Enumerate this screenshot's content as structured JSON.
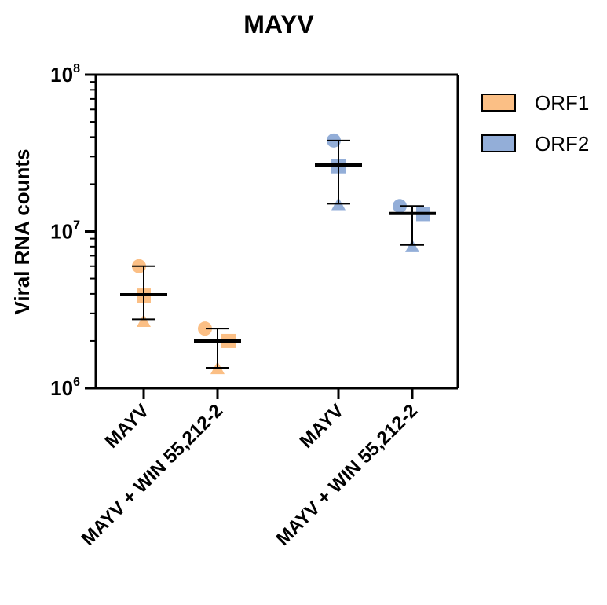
{
  "chart_data": {
    "type": "scatter",
    "title": "MAYV",
    "ylabel": "Viral RNA counts",
    "yscale": "log",
    "ylim": [
      1000000,
      100000000
    ],
    "yticks": [
      {
        "value": 1000000,
        "base": "10",
        "exp": "6"
      },
      {
        "value": 10000000,
        "base": "10",
        "exp": "7"
      },
      {
        "value": 100000000,
        "base": "10",
        "exp": "8"
      }
    ],
    "categories": [
      "MAYV",
      "MAYV + WIN 55,212-2",
      "MAYV",
      "MAYV + WIN 55,212-2"
    ],
    "legend_position": "right",
    "series": [
      {
        "name": "ORF1",
        "color": "#FBBF85",
        "groups": [
          {
            "category_index": 0,
            "points": [
              {
                "marker": "circle",
                "y": 6000000
              },
              {
                "marker": "square",
                "y": 3900000
              },
              {
                "marker": "triangle",
                "y": 2700000
              }
            ],
            "mean": 3950000,
            "sd_low": 2750000,
            "sd_high": 6000000
          },
          {
            "category_index": 1,
            "points": [
              {
                "marker": "circle",
                "y": 2400000
              },
              {
                "marker": "square",
                "y": 2000000
              },
              {
                "marker": "triangle",
                "y": 1350000
              }
            ],
            "mean": 2000000,
            "sd_low": 1350000,
            "sd_high": 2400000
          }
        ]
      },
      {
        "name": "ORF2",
        "color": "#93AED8",
        "groups": [
          {
            "category_index": 2,
            "points": [
              {
                "marker": "circle",
                "y": 38000000
              },
              {
                "marker": "square",
                "y": 26000000
              },
              {
                "marker": "triangle",
                "y": 15000000
              }
            ],
            "mean": 26500000,
            "sd_low": 15000000,
            "sd_high": 38000000
          },
          {
            "category_index": 3,
            "points": [
              {
                "marker": "circle",
                "y": 14500000
              },
              {
                "marker": "square",
                "y": 12900000
              },
              {
                "marker": "triangle",
                "y": 8100000
              }
            ],
            "mean": 13000000,
            "sd_low": 8200000,
            "sd_high": 14500000
          }
        ]
      }
    ]
  }
}
